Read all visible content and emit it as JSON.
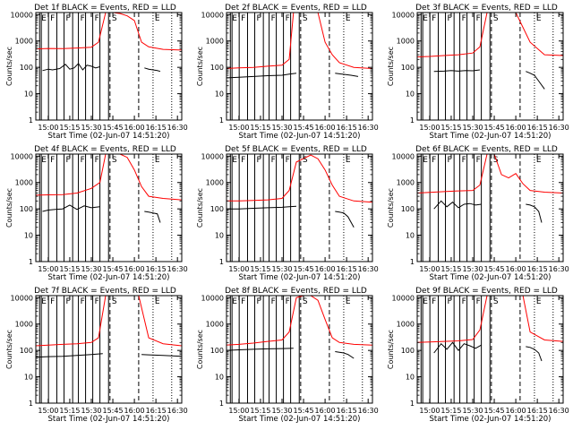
{
  "chart_data": {
    "type": "line",
    "layout": "3x3 grid",
    "grid": false,
    "xlabel": "Start Time (02-Jun-07 14:51:20)",
    "ylabel": "Counts/sec",
    "y_scale": "log",
    "ylim": [
      1,
      12000
    ],
    "xlim": [
      "14:51:20",
      "16:33:00"
    ],
    "x_ticks": [
      "15:00",
      "15:15",
      "15:30",
      "15:45",
      "16:00",
      "16:15",
      "16:30"
    ],
    "y_ticks": [
      "1",
      "10",
      "100",
      "1000",
      "10000"
    ],
    "series_colors": {
      "events": "#000000",
      "lld": "#ff0000"
    },
    "vline_times": [
      "14:54:00",
      "14:55:10",
      "15:00:10",
      "15:06:00",
      "15:11:00",
      "15:17:00",
      "15:21:00",
      "15:26:00",
      "15:31:00",
      "15:36:00",
      "15:42:00"
    ],
    "marker_dashed_times": [
      "15:43:00",
      "16:03:00"
    ],
    "marker_dotted_times": [
      "16:13:00",
      "16:26:00"
    ],
    "marker_letters": {
      "s": "S",
      "e": "E",
      "f": "F"
    },
    "panels": [
      {
        "title": "Det 1f BLACK = Events, RED = LLD",
        "events": {
          "x": [
            "14:56",
            "15:00",
            "15:03",
            "15:08",
            "15:12",
            "15:15",
            "15:18",
            "15:21",
            "15:24",
            "15:27",
            "15:30",
            "15:33",
            "15:36"
          ],
          "y": [
            75,
            85,
            80,
            90,
            130,
            85,
            95,
            140,
            80,
            120,
            110,
            95,
            105
          ]
        },
        "events2": {
          "x": [
            "16:07",
            "16:10",
            "16:13",
            "16:16",
            "16:18"
          ],
          "y": [
            95,
            85,
            80,
            75,
            70
          ]
        },
        "lld": {
          "x": [
            "14:51",
            "15:00",
            "15:10",
            "15:20",
            "15:30",
            "15:35",
            "15:40",
            "15:45",
            "15:50",
            "15:55",
            "16:00",
            "16:05",
            "16:10",
            "16:20",
            "16:33"
          ],
          "y": [
            500,
            520,
            510,
            540,
            580,
            900,
            12000,
            12000,
            11000,
            9000,
            6000,
            900,
            600,
            480,
            450
          ]
        }
      },
      {
        "title": "Det 2f BLACK = Events, RED = LLD",
        "events": {
          "x": [
            "14:51",
            "15:00",
            "15:10",
            "15:20",
            "15:30",
            "15:35",
            "15:40"
          ],
          "y": [
            40,
            42,
            45,
            48,
            50,
            55,
            60
          ]
        },
        "events2": {
          "x": [
            "16:07",
            "16:12",
            "16:18",
            "16:23"
          ],
          "y": [
            60,
            55,
            50,
            45
          ]
        },
        "lld": {
          "x": [
            "14:51",
            "15:00",
            "15:10",
            "15:20",
            "15:30",
            "15:35",
            "15:38",
            "15:45",
            "15:55",
            "16:00",
            "16:05",
            "16:10",
            "16:20",
            "16:33"
          ],
          "y": [
            90,
            95,
            100,
            110,
            120,
            200,
            12000,
            12000,
            12000,
            900,
            300,
            150,
            100,
            90
          ]
        }
      },
      {
        "title": "Det 3f BLACK = Events, RED = LLD",
        "events": {
          "x": [
            "15:03",
            "15:10",
            "15:15",
            "15:20",
            "15:25",
            "15:30",
            "15:35"
          ],
          "y": [
            70,
            72,
            75,
            72,
            76,
            74,
            80
          ]
        },
        "events2": {
          "x": [
            "16:07",
            "16:10",
            "16:13",
            "16:16",
            "16:20"
          ],
          "y": [
            70,
            60,
            50,
            30,
            15
          ]
        },
        "lld": {
          "x": [
            "14:51",
            "15:00",
            "15:10",
            "15:20",
            "15:30",
            "15:35",
            "15:40",
            "15:45",
            "16:00",
            "16:10",
            "16:20",
            "16:33"
          ],
          "y": [
            250,
            260,
            280,
            300,
            350,
            600,
            12000,
            12000,
            12000,
            900,
            300,
            280
          ]
        }
      },
      {
        "title": "Det 4f BLACK = Events, RED = LLD",
        "events": {
          "x": [
            "14:56",
            "15:00",
            "15:05",
            "15:10",
            "15:15",
            "15:20",
            "15:25",
            "15:30",
            "15:36"
          ],
          "y": [
            80,
            90,
            95,
            100,
            140,
            95,
            130,
            110,
            120
          ]
        },
        "events2": {
          "x": [
            "16:07",
            "16:10",
            "16:13",
            "16:16",
            "16:18"
          ],
          "y": [
            80,
            75,
            70,
            65,
            30
          ]
        },
        "lld": {
          "x": [
            "14:51",
            "15:00",
            "15:10",
            "15:20",
            "15:30",
            "15:36",
            "15:40",
            "15:50",
            "15:55",
            "16:00",
            "16:05",
            "16:10",
            "16:20",
            "16:33"
          ],
          "y": [
            330,
            340,
            350,
            400,
            600,
            1000,
            12000,
            12000,
            9000,
            3000,
            700,
            300,
            250,
            220
          ]
        }
      },
      {
        "title": "Det 5f BLACK = Events, RED = LLD",
        "events": {
          "x": [
            "14:51",
            "15:00",
            "15:10",
            "15:20",
            "15:30",
            "15:35",
            "15:40"
          ],
          "y": [
            100,
            100,
            105,
            110,
            115,
            120,
            125
          ]
        },
        "events2": {
          "x": [
            "16:07",
            "16:10",
            "16:13",
            "16:16",
            "16:20"
          ],
          "y": [
            80,
            75,
            70,
            50,
            20
          ]
        },
        "lld": {
          "x": [
            "14:51",
            "15:00",
            "15:10",
            "15:20",
            "15:30",
            "15:35",
            "15:40",
            "15:50",
            "15:55",
            "16:00",
            "16:05",
            "16:10",
            "16:20",
            "16:33"
          ],
          "y": [
            200,
            200,
            210,
            220,
            250,
            500,
            6000,
            11000,
            8000,
            3000,
            800,
            300,
            200,
            180
          ]
        }
      },
      {
        "title": "Det 6f BLACK = Events, RED = LLD",
        "events": {
          "x": [
            "15:03",
            "15:08",
            "15:12",
            "15:16",
            "15:20",
            "15:24",
            "15:28",
            "15:32",
            "15:36"
          ],
          "y": [
            100,
            200,
            120,
            180,
            110,
            150,
            160,
            140,
            150
          ]
        },
        "events2": {
          "x": [
            "16:07",
            "16:10",
            "16:13",
            "16:16",
            "16:18"
          ],
          "y": [
            150,
            140,
            120,
            80,
            30
          ]
        },
        "lld": {
          "x": [
            "14:51",
            "15:00",
            "15:10",
            "15:20",
            "15:30",
            "15:35",
            "15:40",
            "15:45",
            "15:50",
            "15:55",
            "16:00",
            "16:05",
            "16:10",
            "16:20",
            "16:33"
          ],
          "y": [
            400,
            420,
            450,
            480,
            500,
            800,
            12000,
            12000,
            2000,
            1500,
            2200,
            900,
            500,
            430,
            400
          ]
        }
      },
      {
        "title": "Det 7f BLACK = Events, RED = LLD",
        "events": {
          "x": [
            "14:51",
            "15:00",
            "15:10",
            "15:20",
            "15:30",
            "15:38"
          ],
          "y": [
            55,
            58,
            60,
            65,
            70,
            75
          ]
        },
        "events2": {
          "x": [
            "16:05",
            "16:10",
            "16:20",
            "16:33"
          ],
          "y": [
            70,
            68,
            65,
            60
          ]
        },
        "lld": {
          "x": [
            "14:51",
            "15:00",
            "15:10",
            "15:20",
            "15:30",
            "15:35",
            "15:40",
            "16:00",
            "16:03",
            "16:10",
            "16:20",
            "16:33"
          ],
          "y": [
            150,
            160,
            170,
            180,
            200,
            300,
            12000,
            12000,
            12000,
            300,
            180,
            150
          ]
        }
      },
      {
        "title": "Det 8f BLACK = Events, RED = LLD",
        "events": {
          "x": [
            "14:51",
            "15:00",
            "15:10",
            "15:20",
            "15:30",
            "15:38"
          ],
          "y": [
            100,
            105,
            110,
            115,
            118,
            120
          ]
        },
        "events2": {
          "x": [
            "16:07",
            "16:10",
            "16:13",
            "16:16",
            "16:20"
          ],
          "y": [
            90,
            85,
            80,
            70,
            50
          ]
        },
        "lld": {
          "x": [
            "14:51",
            "15:00",
            "15:10",
            "15:20",
            "15:30",
            "15:35",
            "15:40",
            "15:45",
            "15:50",
            "15:55",
            "16:00",
            "16:05",
            "16:10",
            "16:20",
            "16:33"
          ],
          "y": [
            160,
            170,
            190,
            220,
            250,
            500,
            10000,
            12000,
            12000,
            8000,
            1500,
            300,
            200,
            170,
            160
          ]
        }
      },
      {
        "title": "Det 9f BLACK = Events, RED = LLD",
        "events": {
          "x": [
            "15:03",
            "15:08",
            "15:12",
            "15:16",
            "15:20",
            "15:24",
            "15:28",
            "15:32",
            "15:36"
          ],
          "y": [
            80,
            180,
            110,
            200,
            100,
            180,
            150,
            120,
            160
          ]
        },
        "events2": {
          "x": [
            "16:07",
            "16:10",
            "16:13",
            "16:16",
            "16:18"
          ],
          "y": [
            140,
            130,
            110,
            80,
            40
          ]
        },
        "lld": {
          "x": [
            "14:51",
            "15:00",
            "15:10",
            "15:20",
            "15:30",
            "15:35",
            "15:40",
            "16:00",
            "16:05",
            "16:10",
            "16:20",
            "16:33"
          ],
          "y": [
            200,
            210,
            220,
            230,
            260,
            600,
            12000,
            12000,
            12000,
            500,
            250,
            220
          ]
        }
      }
    ]
  }
}
